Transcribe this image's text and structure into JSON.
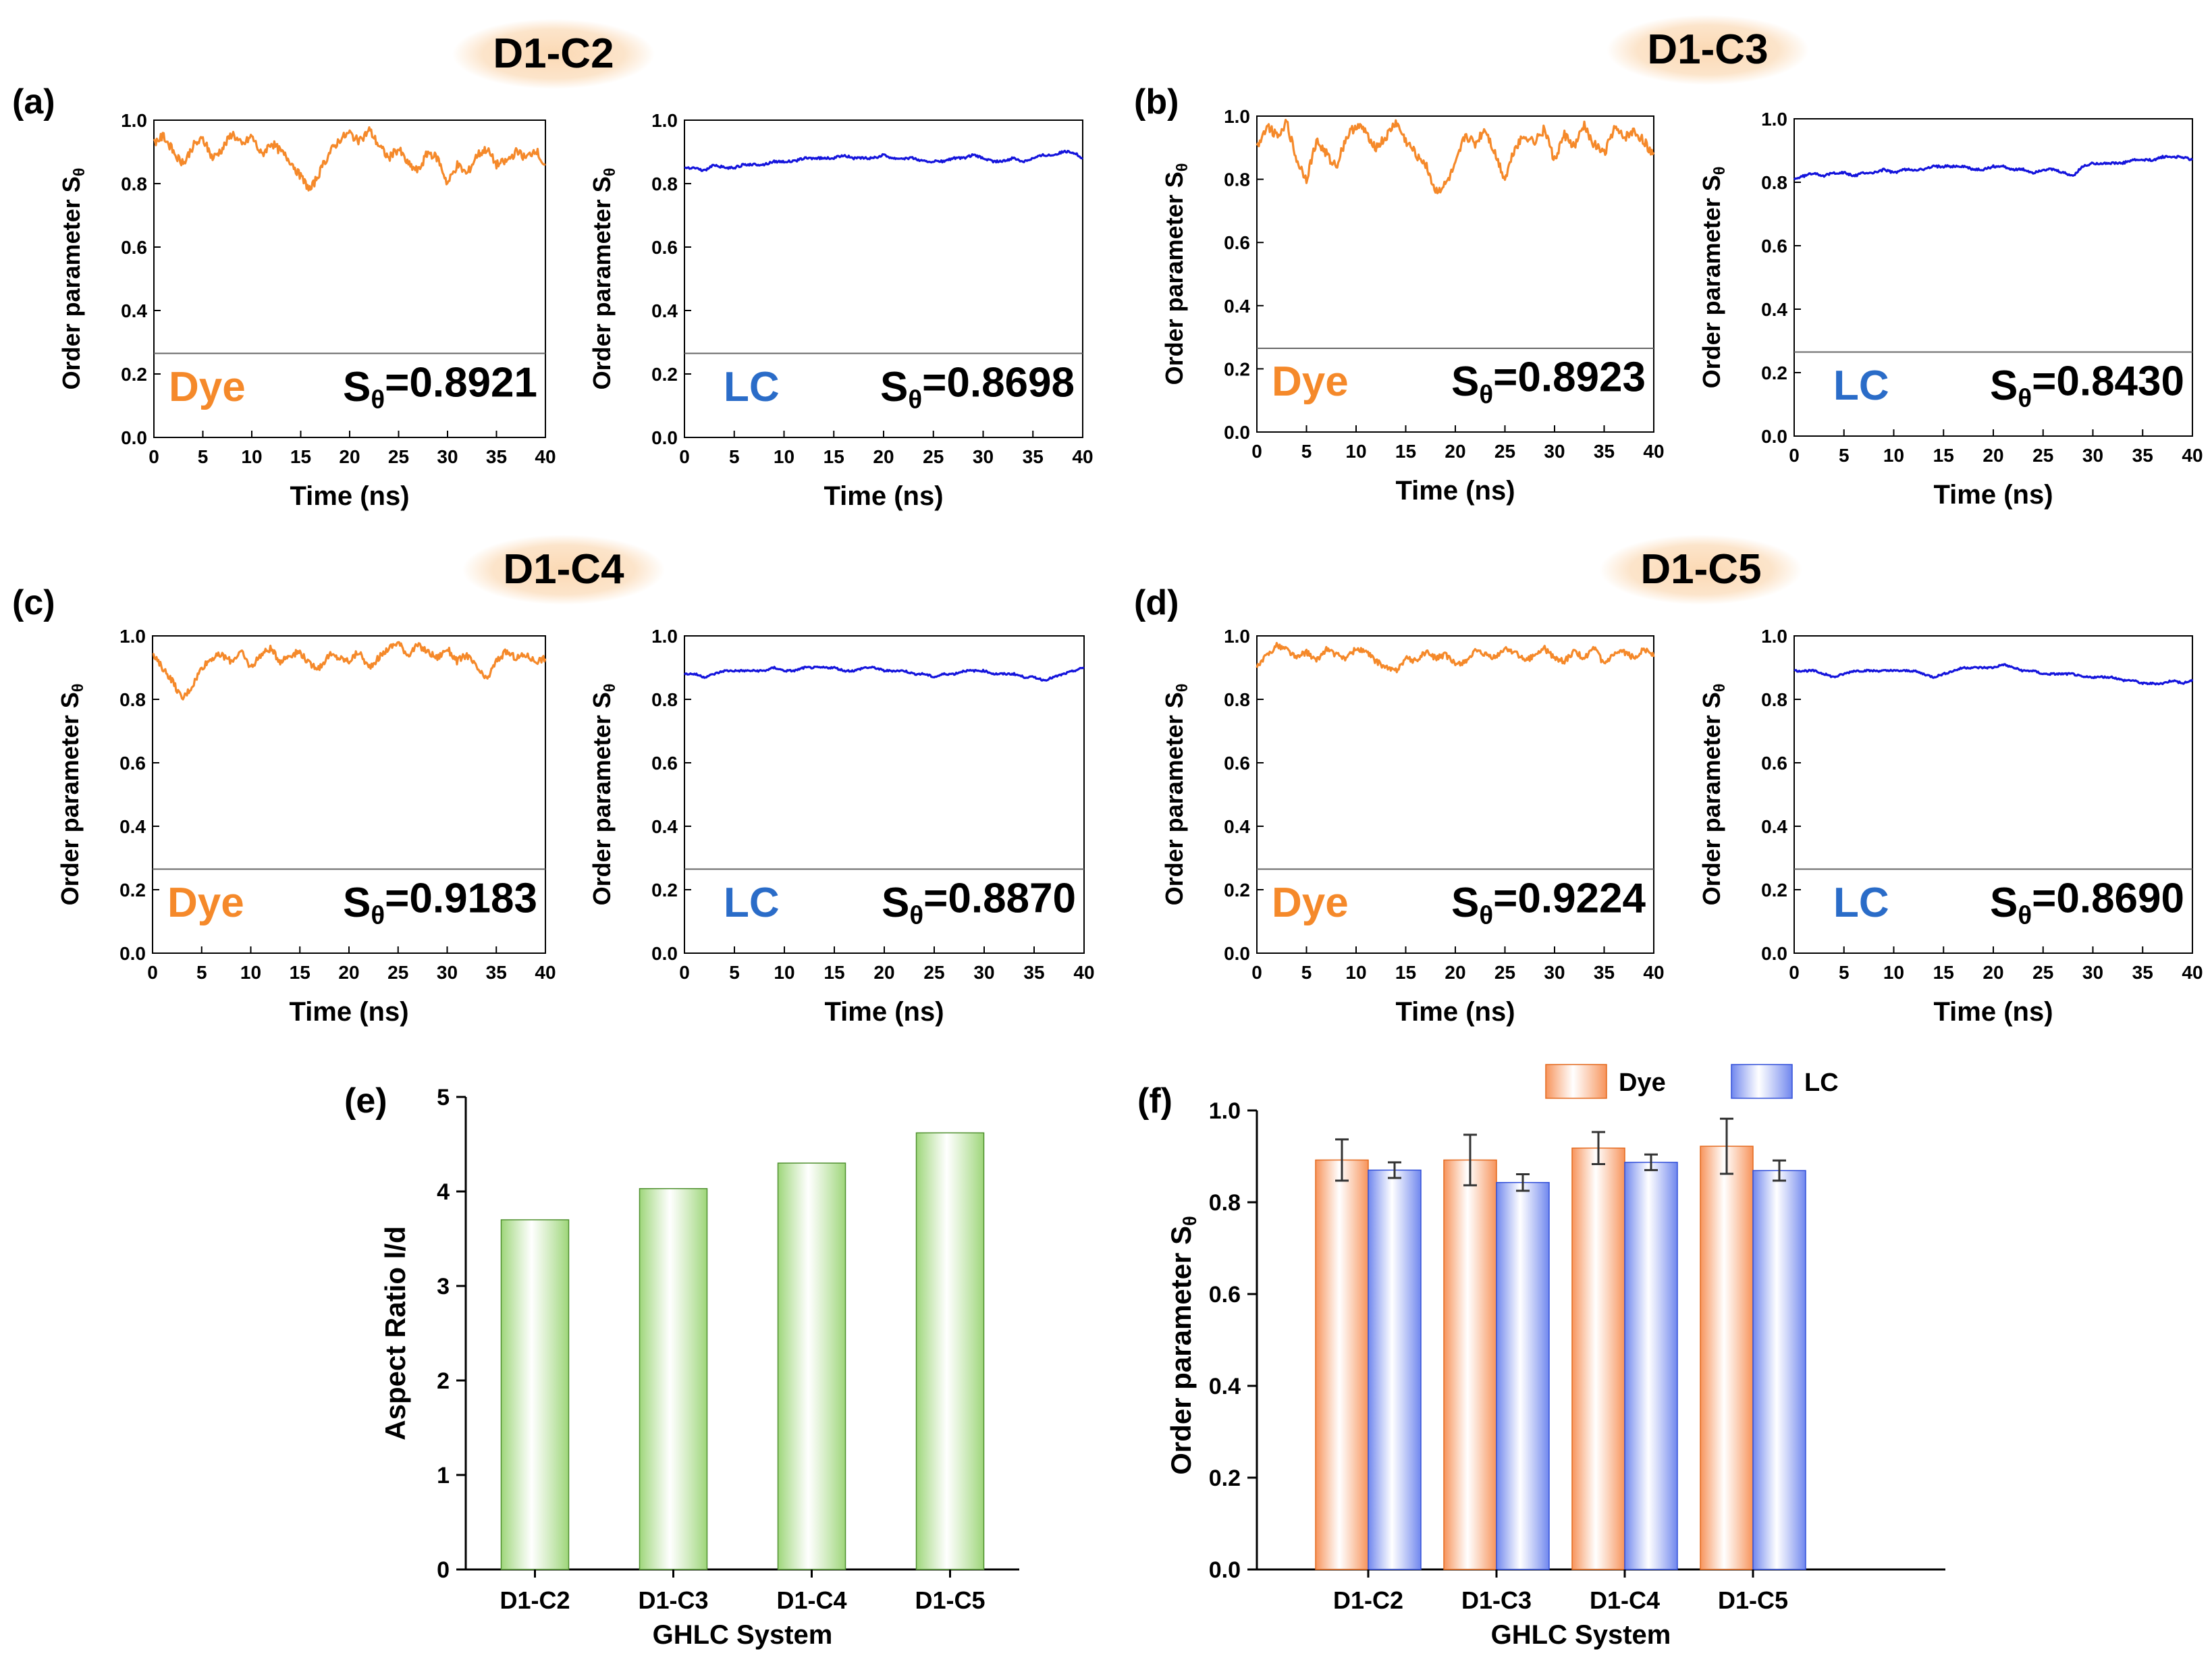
{
  "colors": {
    "dye": "#f5892a",
    "lc": "#1414dc",
    "lc_text": "#2a6cc8",
    "bar_green": "#9ed67a",
    "bar_orange": "#f7935a",
    "bar_blue": "#6f86ee",
    "title_glow": "#fbd9b4"
  },
  "panels_common": {
    "ylabel": "Order parameter S",
    "ylabel_sub": "θ",
    "xlabel": "Time (ns)",
    "xticks": [
      "0",
      "5",
      "10",
      "15",
      "20",
      "25",
      "30",
      "35",
      "40"
    ],
    "yticks": [
      "0.0",
      "0.2",
      "0.4",
      "0.6",
      "0.8",
      "1.0"
    ],
    "sval_prefix": "S",
    "sval_sub": "θ"
  },
  "chart_data": [
    {
      "type": "line",
      "panel": "a",
      "label": "(a)",
      "group_title": "D1-C2",
      "series_label": "Dye",
      "s_value": "=0.8921",
      "series": "dye",
      "xlim": [
        0,
        40
      ],
      "ylim": [
        0.0,
        1.0
      ],
      "mean": 0.8921,
      "amplitude": 0.045,
      "values": [
        0.93,
        0.95,
        0.9,
        0.86,
        0.92,
        0.94,
        0.88,
        0.91,
        0.96,
        0.92,
        0.95,
        0.89,
        0.93,
        0.9,
        0.87,
        0.82,
        0.78,
        0.84,
        0.9,
        0.94,
        0.96,
        0.93,
        0.97,
        0.92,
        0.88,
        0.91,
        0.86,
        0.84,
        0.9,
        0.88,
        0.8,
        0.86,
        0.83,
        0.89,
        0.91,
        0.86,
        0.87,
        0.9,
        0.88,
        0.91,
        0.85
      ]
    },
    {
      "type": "line",
      "panel": "a2",
      "label": "",
      "group_title": "",
      "series_label": "LC",
      "s_value": "=0.8698",
      "series": "lc",
      "xlim": [
        0,
        40
      ],
      "ylim": [
        0.0,
        1.0
      ],
      "mean": 0.8698,
      "amplitude": 0.012,
      "values": [
        0.85,
        0.85,
        0.84,
        0.86,
        0.85,
        0.85,
        0.86,
        0.86,
        0.86,
        0.87,
        0.87,
        0.87,
        0.88,
        0.88,
        0.88,
        0.88,
        0.89,
        0.88,
        0.88,
        0.88,
        0.89,
        0.88,
        0.88,
        0.88,
        0.87,
        0.87,
        0.87,
        0.88,
        0.88,
        0.89,
        0.88,
        0.87,
        0.87,
        0.88,
        0.87,
        0.88,
        0.89,
        0.89,
        0.9,
        0.9,
        0.88
      ]
    },
    {
      "type": "line",
      "panel": "b",
      "label": "(b)",
      "group_title": "D1-C3",
      "series_label": "Dye",
      "s_value": "=0.8923",
      "series": "dye",
      "xlim": [
        0,
        40
      ],
      "ylim": [
        0.0,
        1.0
      ],
      "mean": 0.8923,
      "amplitude": 0.05,
      "values": [
        0.9,
        0.97,
        0.94,
        0.98,
        0.86,
        0.8,
        0.92,
        0.88,
        0.84,
        0.93,
        0.97,
        0.95,
        0.9,
        0.93,
        0.98,
        0.92,
        0.88,
        0.85,
        0.76,
        0.78,
        0.84,
        0.94,
        0.91,
        0.96,
        0.88,
        0.8,
        0.9,
        0.94,
        0.92,
        0.96,
        0.86,
        0.94,
        0.9,
        0.97,
        0.91,
        0.88,
        0.96,
        0.93,
        0.95,
        0.92,
        0.88
      ]
    },
    {
      "type": "line",
      "panel": "b2",
      "label": "",
      "group_title": "",
      "series_label": "LC",
      "s_value": "=0.8430",
      "series": "lc",
      "xlim": [
        0,
        40
      ],
      "ylim": [
        0.0,
        1.0
      ],
      "mean": 0.843,
      "amplitude": 0.012,
      "values": [
        0.81,
        0.82,
        0.83,
        0.82,
        0.83,
        0.83,
        0.82,
        0.83,
        0.83,
        0.84,
        0.83,
        0.84,
        0.84,
        0.84,
        0.85,
        0.85,
        0.85,
        0.85,
        0.84,
        0.84,
        0.85,
        0.85,
        0.84,
        0.84,
        0.83,
        0.84,
        0.84,
        0.83,
        0.82,
        0.85,
        0.86,
        0.86,
        0.86,
        0.86,
        0.87,
        0.87,
        0.87,
        0.88,
        0.88,
        0.88,
        0.87
      ]
    },
    {
      "type": "line",
      "panel": "c",
      "label": "(c)",
      "group_title": "D1-C4",
      "series_label": "Dye",
      "s_value": "=0.9183",
      "series": "dye",
      "xlim": [
        0,
        40
      ],
      "ylim": [
        0.0,
        1.0
      ],
      "mean": 0.9183,
      "amplitude": 0.035,
      "values": [
        0.94,
        0.9,
        0.86,
        0.8,
        0.84,
        0.9,
        0.93,
        0.94,
        0.92,
        0.95,
        0.9,
        0.94,
        0.96,
        0.92,
        0.94,
        0.95,
        0.91,
        0.9,
        0.94,
        0.93,
        0.92,
        0.95,
        0.9,
        0.93,
        0.96,
        0.98,
        0.94,
        0.97,
        0.95,
        0.93,
        0.96,
        0.92,
        0.94,
        0.9,
        0.86,
        0.92,
        0.95,
        0.93,
        0.94,
        0.92,
        0.93
      ]
    },
    {
      "type": "line",
      "panel": "c2",
      "label": "",
      "group_title": "",
      "series_label": "LC",
      "s_value": "=0.8870",
      "series": "lc",
      "xlim": [
        0,
        40
      ],
      "ylim": [
        0.0,
        1.0
      ],
      "mean": 0.887,
      "amplitude": 0.01,
      "values": [
        0.88,
        0.88,
        0.87,
        0.88,
        0.89,
        0.89,
        0.89,
        0.89,
        0.89,
        0.9,
        0.89,
        0.89,
        0.9,
        0.9,
        0.9,
        0.9,
        0.89,
        0.89,
        0.9,
        0.9,
        0.89,
        0.89,
        0.89,
        0.88,
        0.88,
        0.87,
        0.88,
        0.88,
        0.89,
        0.89,
        0.89,
        0.88,
        0.88,
        0.88,
        0.87,
        0.87,
        0.86,
        0.87,
        0.88,
        0.89,
        0.9
      ]
    },
    {
      "type": "line",
      "panel": "d",
      "label": "(d)",
      "group_title": "D1-C5",
      "series_label": "Dye",
      "s_value": "=0.9224",
      "series": "dye",
      "xlim": [
        0,
        40
      ],
      "ylim": [
        0.0,
        1.0
      ],
      "mean": 0.9224,
      "amplitude": 0.03,
      "values": [
        0.9,
        0.94,
        0.97,
        0.96,
        0.93,
        0.95,
        0.92,
        0.96,
        0.94,
        0.93,
        0.96,
        0.95,
        0.92,
        0.9,
        0.89,
        0.93,
        0.92,
        0.95,
        0.93,
        0.94,
        0.91,
        0.92,
        0.95,
        0.94,
        0.93,
        0.96,
        0.95,
        0.92,
        0.94,
        0.96,
        0.93,
        0.92,
        0.95,
        0.93,
        0.96,
        0.91,
        0.94,
        0.95,
        0.93,
        0.96,
        0.94
      ]
    },
    {
      "type": "line",
      "panel": "d2",
      "label": "",
      "group_title": "",
      "series_label": "LC",
      "s_value": "=0.8690",
      "series": "lc",
      "xlim": [
        0,
        40
      ],
      "ylim": [
        0.0,
        1.0
      ],
      "mean": 0.869,
      "amplitude": 0.01,
      "values": [
        0.89,
        0.89,
        0.89,
        0.88,
        0.87,
        0.88,
        0.89,
        0.89,
        0.89,
        0.89,
        0.89,
        0.89,
        0.89,
        0.88,
        0.87,
        0.88,
        0.89,
        0.9,
        0.9,
        0.9,
        0.9,
        0.91,
        0.9,
        0.89,
        0.89,
        0.88,
        0.88,
        0.88,
        0.88,
        0.87,
        0.87,
        0.87,
        0.87,
        0.86,
        0.86,
        0.85,
        0.85,
        0.85,
        0.86,
        0.85,
        0.86
      ]
    },
    {
      "type": "bar",
      "panel": "e",
      "label": "(e)",
      "title": "",
      "xlabel": "GHLC System",
      "ylabel": "Aspect Ratio l/d",
      "categories": [
        "D1-C2",
        "D1-C3",
        "D1-C4",
        "D1-C5"
      ],
      "values": [
        3.7,
        4.03,
        4.3,
        4.62
      ],
      "ylim": [
        0,
        5
      ],
      "yticks": [
        "0",
        "1",
        "2",
        "3",
        "4",
        "5"
      ]
    },
    {
      "type": "bar",
      "panel": "f",
      "label": "(f)",
      "title": "",
      "xlabel": "GHLC System",
      "ylabel": "Order parameter S",
      "ylabel_sub": "θ",
      "categories": [
        "D1-C2",
        "D1-C3",
        "D1-C4",
        "D1-C5"
      ],
      "series": [
        {
          "name": "Dye",
          "values": [
            0.892,
            0.892,
            0.918,
            0.922
          ],
          "errors": [
            0.045,
            0.055,
            0.035,
            0.06
          ]
        },
        {
          "name": "LC",
          "values": [
            0.87,
            0.843,
            0.887,
            0.869
          ],
          "errors": [
            0.017,
            0.018,
            0.017,
            0.022
          ]
        }
      ],
      "ylim": [
        0.0,
        1.0
      ],
      "yticks": [
        "0.0",
        "0.2",
        "0.4",
        "0.6",
        "0.8",
        "1.0"
      ],
      "legend": "top"
    }
  ]
}
